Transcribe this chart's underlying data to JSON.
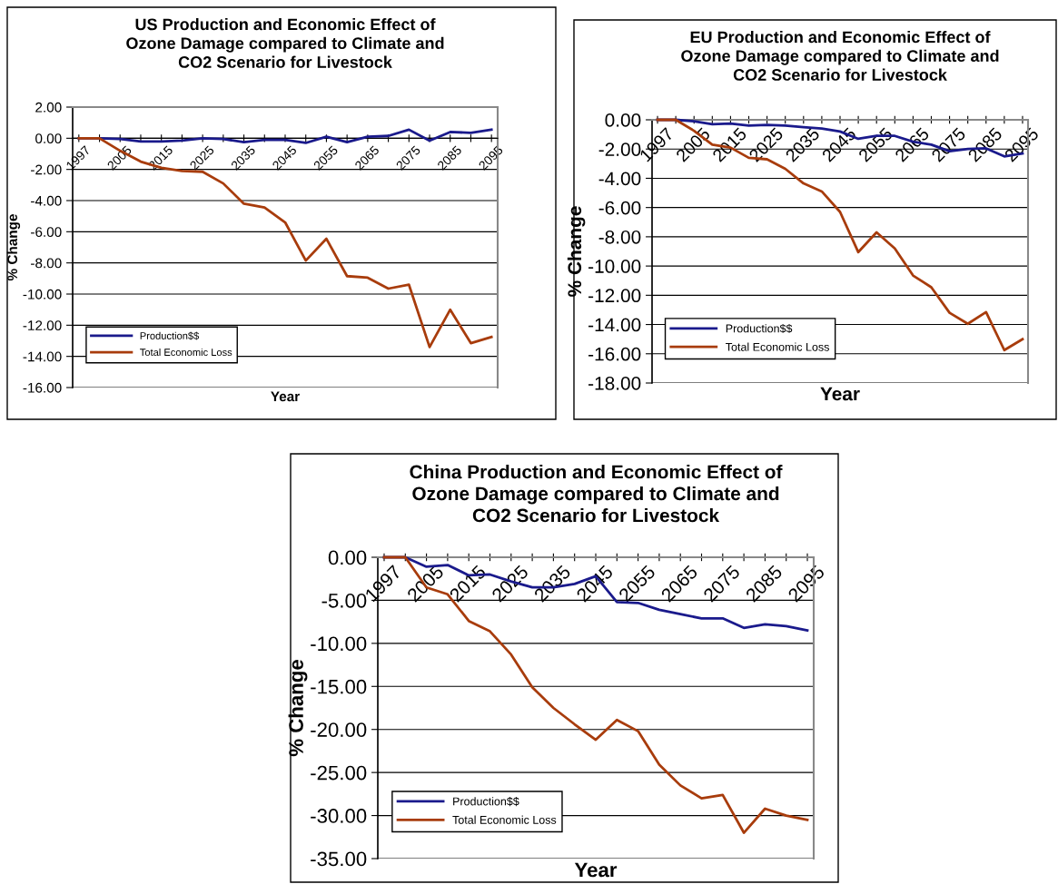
{
  "chart_data": [
    {
      "type": "line",
      "title": "US Production and Economic Effect of\nOzone Damage compared to Climate and\nCO2 Scenario for Livestock",
      "xlabel": "Year",
      "ylabel": "% Change",
      "categories": [
        "1997",
        null,
        "2005",
        null,
        "2015",
        null,
        "2025",
        null,
        "2035",
        null,
        "2045",
        null,
        "2055",
        null,
        "2065",
        null,
        "2075",
        null,
        "2085",
        null,
        "2095"
      ],
      "series": [
        {
          "name": "Production$$",
          "color": "#1a1a8c",
          "values": [
            0,
            0,
            -0.05,
            -0.2,
            -0.2,
            -0.15,
            0,
            -0.05,
            -0.25,
            -0.1,
            -0.1,
            -0.3,
            0.1,
            -0.25,
            0.1,
            0.15,
            0.55,
            -0.15,
            0.4,
            0.35,
            0.55
          ]
        },
        {
          "name": "Total Economic Loss",
          "color": "#a83c0c",
          "values": [
            0,
            0,
            -0.8,
            -1.5,
            -1.9,
            -2.1,
            -2.15,
            -2.9,
            -4.2,
            -4.45,
            -5.4,
            -7.85,
            -6.45,
            -8.85,
            -8.95,
            -9.65,
            -9.4,
            -13.4,
            -11,
            -13.15,
            -12.75
          ]
        }
      ],
      "ylim": [
        -16,
        2
      ],
      "yticks": [
        {
          "value": -16,
          "label": "-16.00"
        },
        {
          "value": -14,
          "label": "-14.00"
        },
        {
          "value": -12,
          "label": "-12.00"
        },
        {
          "value": -10,
          "label": "-10.00"
        },
        {
          "value": -8,
          "label": "-8.00"
        },
        {
          "value": -6,
          "label": "-6.00"
        },
        {
          "value": -4,
          "label": "-4.00"
        },
        {
          "value": -2,
          "label": "-2.00"
        },
        {
          "value": 0,
          "label": "0.00"
        },
        {
          "value": 2,
          "label": "2.00"
        }
      ],
      "grid": "y",
      "legend": "bottom left",
      "marker": "none",
      "line_style": "solid"
    },
    {
      "type": "line",
      "title": "EU Production and Economic Effect of\nOzone Damage compared to Climate and\nCO2 Scenario for Livestock",
      "xlabel": "Year",
      "ylabel": "% Change",
      "categories": [
        "1997",
        null,
        "2005",
        null,
        "2015",
        null,
        "2025",
        null,
        "2035",
        null,
        "2045",
        null,
        "2055",
        null,
        "2065",
        null,
        "2075",
        null,
        "2085",
        null,
        "2095"
      ],
      "series": [
        {
          "name": "Production$$",
          "color": "#1a1a8c",
          "values": [
            0,
            0,
            -0.1,
            -0.3,
            -0.25,
            -0.4,
            -0.35,
            -0.4,
            -0.5,
            -0.6,
            -0.8,
            -1.3,
            -1.1,
            -1.1,
            -1.5,
            -1.7,
            -2.15,
            -2.0,
            -1.95,
            -2.5,
            -2.3
          ]
        },
        {
          "name": "Total Economic Loss",
          "color": "#a83c0c",
          "values": [
            0,
            0,
            -0.75,
            -1.7,
            -1.9,
            -2.6,
            -2.7,
            -3.35,
            -4.35,
            -4.9,
            -6.3,
            -9.05,
            -7.7,
            -8.8,
            -10.65,
            -11.45,
            -13.2,
            -13.95,
            -13.15,
            -15.75,
            -15.0
          ]
        }
      ],
      "ylim": [
        -18,
        0
      ],
      "yticks": [
        {
          "value": -18,
          "label": "-18.00"
        },
        {
          "value": -16,
          "label": "-16.00"
        },
        {
          "value": -14,
          "label": "-14.00"
        },
        {
          "value": -12,
          "label": "-12.00"
        },
        {
          "value": -10,
          "label": "-10.00"
        },
        {
          "value": -8,
          "label": "-8.00"
        },
        {
          "value": -6,
          "label": "-6.00"
        },
        {
          "value": -4,
          "label": "-4.00"
        },
        {
          "value": -2,
          "label": "-2.00"
        },
        {
          "value": 0,
          "label": "0.00"
        }
      ],
      "grid": "y",
      "legend": "bottom left",
      "marker": "none",
      "line_style": "solid"
    },
    {
      "type": "line",
      "title": "China Production and Economic Effect of\nOzone Damage compared to Climate and\nCO2 Scenario for Livestock",
      "xlabel": "Year",
      "ylabel": "% Change",
      "categories": [
        "1997",
        null,
        "2005",
        null,
        "2015",
        null,
        "2025",
        null,
        "2035",
        null,
        "2045",
        null,
        "2055",
        null,
        "2065",
        null,
        "2075",
        null,
        "2085",
        null,
        "2095"
      ],
      "series": [
        {
          "name": "Production$$",
          "color": "#1a1a8c",
          "values": [
            0,
            0,
            -1.1,
            -0.9,
            -2.1,
            -2.0,
            -2.8,
            -3.5,
            -3.5,
            -3.1,
            -2.2,
            -5.2,
            -5.3,
            -6.1,
            -6.6,
            -7.1,
            -7.1,
            -8.2,
            -7.8,
            -8.0,
            -8.5
          ]
        },
        {
          "name": "Total Economic Loss",
          "color": "#a83c0c",
          "values": [
            0,
            0,
            -3.5,
            -4.3,
            -7.4,
            -8.6,
            -11.3,
            -15.1,
            -17.5,
            -19.4,
            -21.2,
            -18.9,
            -20.2,
            -24.1,
            -26.5,
            -28.0,
            -27.6,
            -32.0,
            -29.2,
            -30.0,
            -30.5
          ]
        }
      ],
      "ylim": [
        -35,
        0
      ],
      "yticks": [
        {
          "value": -35,
          "label": "-35.00"
        },
        {
          "value": -30,
          "label": "-30.00"
        },
        {
          "value": -25,
          "label": "-25.00"
        },
        {
          "value": -20,
          "label": "-20.00"
        },
        {
          "value": -15,
          "label": "-15.00"
        },
        {
          "value": -10,
          "label": "-10.00"
        },
        {
          "value": -5,
          "label": "-5.00"
        },
        {
          "value": 0,
          "label": "0.00"
        }
      ],
      "grid": "y",
      "legend": "bottom left",
      "marker": "none",
      "line_style": "solid"
    }
  ]
}
